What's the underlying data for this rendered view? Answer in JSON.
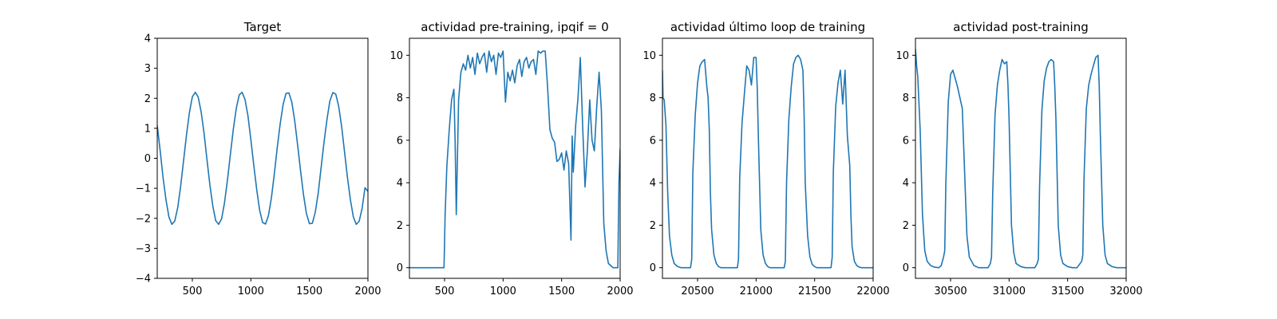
{
  "chart_data": [
    {
      "type": "line",
      "title": "Target",
      "xlabel": "",
      "ylabel": "",
      "xlim": [
        200,
        2000
      ],
      "ylim": [
        -4,
        4
      ],
      "xticks": [
        500,
        1000,
        1500,
        2000
      ],
      "yticks": [
        -4,
        -3,
        -2,
        -1,
        0,
        1,
        2,
        3,
        4
      ],
      "grid": false,
      "color": "#1f77b4",
      "series": [
        {
          "x": [
            200,
            225,
            250,
            275,
            300,
            325,
            350,
            375,
            400,
            425,
            450,
            475,
            500,
            525,
            550,
            575,
            600,
            625,
            650,
            675,
            700,
            725,
            750,
            775,
            800,
            825,
            850,
            875,
            900,
            925,
            950,
            975,
            1000,
            1025,
            1050,
            1075,
            1100,
            1125,
            1150,
            1175,
            1200,
            1225,
            1250,
            1275,
            1300,
            1325,
            1350,
            1375,
            1400,
            1425,
            1450,
            1475,
            1500,
            1525,
            1550,
            1575,
            1600,
            1625,
            1650,
            1675,
            1700,
            1725,
            1750,
            1775,
            1800,
            1825,
            1850,
            1875,
            1900,
            1925,
            1950,
            1975,
            2000
          ],
          "y": [
            1.1,
            0.25,
            -0.64,
            -1.39,
            -1.96,
            -2.2,
            -2.09,
            -1.64,
            -0.94,
            -0.08,
            0.79,
            1.52,
            2.05,
            2.2,
            2.04,
            1.55,
            0.83,
            -0.04,
            -0.89,
            -1.6,
            -2.08,
            -2.2,
            -2.01,
            -1.48,
            -0.72,
            0.14,
            0.96,
            1.66,
            2.11,
            2.2,
            1.96,
            1.41,
            0.62,
            -0.24,
            -1.05,
            -1.73,
            -2.14,
            -2.19,
            -1.91,
            -1.33,
            -0.52,
            0.34,
            1.14,
            1.79,
            2.16,
            2.18,
            1.86,
            1.24,
            0.42,
            -0.44,
            -1.22,
            -1.85,
            -2.18,
            -2.17,
            -1.8,
            -1.16,
            -0.32,
            0.54,
            1.3,
            1.91,
            2.19,
            2.14,
            1.74,
            1.07,
            0.21,
            -0.63,
            -1.38,
            -1.95,
            -2.2,
            -2.1,
            -1.67,
            -0.98,
            -1.1
          ]
        }
      ]
    },
    {
      "type": "line",
      "title": "actividad pre-training, ipqif = 0",
      "xlabel": "",
      "ylabel": "",
      "xlim": [
        200,
        2000
      ],
      "ylim": [
        -0.5,
        10.8
      ],
      "xticks": [
        500,
        1000,
        1500,
        2000
      ],
      "yticks": [
        0,
        2,
        4,
        6,
        8,
        10
      ],
      "grid": false,
      "color": "#1f77b4",
      "series": [
        {
          "x": [
            200,
            300,
            400,
            495,
            500,
            505,
            520,
            540,
            560,
            580,
            590,
            600,
            620,
            640,
            660,
            680,
            700,
            720,
            740,
            760,
            780,
            800,
            820,
            840,
            860,
            880,
            900,
            920,
            940,
            960,
            980,
            1000,
            1020,
            1040,
            1060,
            1080,
            1100,
            1120,
            1140,
            1160,
            1180,
            1200,
            1220,
            1240,
            1260,
            1280,
            1300,
            1320,
            1340,
            1360,
            1380,
            1400,
            1420,
            1440,
            1460,
            1480,
            1500,
            1520,
            1540,
            1560,
            1580,
            1590,
            1600,
            1620,
            1640,
            1660,
            1680,
            1700,
            1720,
            1740,
            1760,
            1780,
            1800,
            1820,
            1840,
            1860,
            1880,
            1900,
            1920,
            1940,
            1960,
            1980,
            1990,
            2000
          ],
          "y": [
            0,
            0,
            0,
            0,
            1.2,
            2.5,
            4.8,
            6.5,
            7.9,
            8.4,
            6.0,
            2.5,
            7.9,
            9.2,
            9.6,
            9.3,
            10.0,
            9.4,
            9.9,
            9.1,
            10.1,
            9.6,
            9.9,
            10.1,
            9.2,
            10.2,
            9.7,
            10.0,
            9.1,
            10.1,
            9.9,
            10.2,
            7.8,
            9.2,
            8.8,
            9.3,
            8.7,
            9.5,
            9.8,
            9.0,
            9.7,
            9.9,
            9.4,
            9.7,
            9.8,
            9.1,
            10.2,
            10.1,
            10.2,
            10.2,
            8.5,
            6.5,
            6.1,
            5.9,
            5.0,
            5.1,
            5.4,
            4.6,
            5.5,
            4.9,
            1.3,
            6.2,
            4.5,
            6.7,
            8.0,
            9.9,
            6.6,
            3.8,
            5.5,
            7.9,
            6.0,
            5.5,
            7.6,
            9.2,
            7.4,
            2.1,
            0.8,
            0.2,
            0.1,
            0,
            0,
            0,
            4.0,
            5.6
          ]
        }
      ]
    },
    {
      "type": "line",
      "title": "actividad último loop de training",
      "xlabel": "",
      "ylabel": "",
      "xlim": [
        20200,
        22000
      ],
      "ylim": [
        -0.5,
        10.8
      ],
      "xticks": [
        20500,
        21000,
        21500,
        22000
      ],
      "yticks": [
        0,
        2,
        4,
        6,
        8,
        10
      ],
      "grid": false,
      "color": "#1f77b4",
      "series": [
        {
          "x": [
            20200,
            20205,
            20215,
            20230,
            20245,
            20260,
            20280,
            20300,
            20330,
            20360,
            20400,
            20440,
            20450,
            20460,
            20480,
            20500,
            20520,
            20540,
            20560,
            20580,
            20590,
            20600,
            20610,
            20620,
            20640,
            20660,
            20680,
            20700,
            20720,
            20760,
            20800,
            20840,
            20850,
            20860,
            20880,
            20900,
            20920,
            20940,
            20960,
            20980,
            21000,
            21010,
            21020,
            21040,
            21060,
            21080,
            21100,
            21120,
            21160,
            21200,
            21240,
            21250,
            21260,
            21280,
            21300,
            21320,
            21340,
            21360,
            21380,
            21400,
            21410,
            21420,
            21440,
            21460,
            21480,
            21500,
            21520,
            21560,
            21600,
            21640,
            21650,
            21660,
            21680,
            21700,
            21720,
            21740,
            21760,
            21780,
            21800,
            21810,
            21820,
            21840,
            21860,
            21880,
            21900,
            21920,
            21960,
            22000
          ],
          "y": [
            9.3,
            8.0,
            7.9,
            6.7,
            3.5,
            1.5,
            0.6,
            0.2,
            0.05,
            0,
            0,
            0,
            0.4,
            4.5,
            7.2,
            8.7,
            9.5,
            9.7,
            9.8,
            8.5,
            8.0,
            6.5,
            3.5,
            1.8,
            0.6,
            0.2,
            0.05,
            0,
            0,
            0,
            0,
            0,
            0.4,
            4.2,
            6.8,
            8.2,
            9.5,
            9.3,
            8.6,
            9.9,
            9.9,
            8.4,
            6.0,
            1.8,
            0.6,
            0.2,
            0.05,
            0,
            0,
            0,
            0,
            0.3,
            4.0,
            7.0,
            8.5,
            9.6,
            9.9,
            10.0,
            9.8,
            9.3,
            7.2,
            4.0,
            1.5,
            0.5,
            0.15,
            0.05,
            0,
            0,
            0,
            0,
            0.5,
            4.5,
            7.6,
            8.7,
            9.3,
            7.7,
            9.3,
            6.2,
            4.8,
            2.5,
            1.0,
            0.3,
            0.1,
            0.03,
            0,
            0,
            0,
            0
          ]
        }
      ]
    },
    {
      "type": "line",
      "title": "actividad post-training",
      "xlabel": "",
      "ylabel": "",
      "xlim": [
        30200,
        32000
      ],
      "ylim": [
        -0.5,
        10.8
      ],
      "xticks": [
        30500,
        31000,
        31500,
        32000
      ],
      "yticks": [
        0,
        2,
        4,
        6,
        8,
        10
      ],
      "grid": false,
      "color": "#1f77b4",
      "series": [
        {
          "x": [
            30200,
            30210,
            30220,
            30240,
            30260,
            30280,
            30300,
            30330,
            30360,
            30400,
            30420,
            30440,
            30450,
            30460,
            30480,
            30500,
            30520,
            30540,
            30560,
            30580,
            30600,
            30620,
            30640,
            30660,
            30700,
            30740,
            30780,
            30820,
            30840,
            30850,
            30860,
            30880,
            30900,
            30920,
            30940,
            30960,
            30980,
            30990,
            31000,
            31020,
            31040,
            31060,
            31100,
            31140,
            31180,
            31220,
            31240,
            31250,
            31260,
            31280,
            31300,
            31320,
            31340,
            31360,
            31380,
            31390,
            31400,
            31420,
            31440,
            31460,
            31500,
            31540,
            31580,
            31620,
            31630,
            31640,
            31660,
            31680,
            31700,
            31720,
            31740,
            31760,
            31770,
            31780,
            31800,
            31820,
            31840,
            31880,
            31920,
            31960,
            32000
          ],
          "y": [
            10.3,
            9.5,
            9.0,
            6.5,
            2.5,
            0.8,
            0.3,
            0.1,
            0.03,
            0,
            0.1,
            0.5,
            0.8,
            4.0,
            7.8,
            9.1,
            9.3,
            8.9,
            8.5,
            8.0,
            7.5,
            4.5,
            1.5,
            0.5,
            0.1,
            0,
            0,
            0,
            0.2,
            0.5,
            3.5,
            7.2,
            8.6,
            9.3,
            9.8,
            9.6,
            9.7,
            8.6,
            7.0,
            2.0,
            0.7,
            0.2,
            0.05,
            0,
            0,
            0,
            0.2,
            0.4,
            3.8,
            7.4,
            8.8,
            9.4,
            9.7,
            9.8,
            9.7,
            8.6,
            7.0,
            2.0,
            0.6,
            0.2,
            0.05,
            0,
            0,
            0.3,
            0.6,
            4.2,
            7.5,
            8.6,
            9.1,
            9.5,
            9.9,
            10.0,
            8.5,
            6.2,
            2.0,
            0.6,
            0.2,
            0.05,
            0,
            0,
            0
          ]
        }
      ]
    }
  ]
}
